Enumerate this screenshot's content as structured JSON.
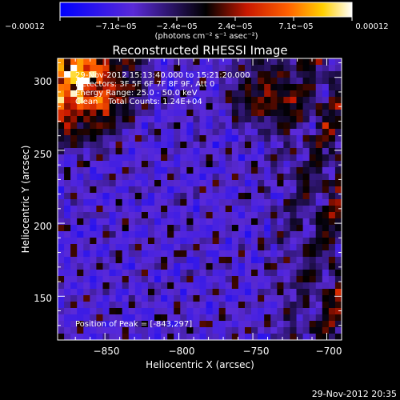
{
  "chart_data": {
    "type": "heatmap",
    "title": "Reconstructed RHESSI Image",
    "xlabel": "Heliocentric X (arcsec)",
    "ylabel": "Heliocentric Y (arcsec)",
    "xlim": [
      -882,
      -690
    ],
    "ylim": [
      120,
      313
    ],
    "x_ticks": [
      -850,
      -800,
      -750,
      -700
    ],
    "x_tick_labels": [
      "−850",
      "−800",
      "−750",
      "−700"
    ],
    "y_ticks": [
      150,
      200,
      250,
      300
    ],
    "y_tick_labels": [
      "150",
      "200",
      "250",
      "300"
    ],
    "colorbar": {
      "min": -0.00012,
      "max": 0.00012,
      "tick_labels": [
        "−0.00012",
        "−7.1e−05",
        "−2.4e−05",
        "2.4e−05",
        "7.1e−05",
        "0.00012"
      ],
      "unit_label": "(photons cm⁻² s⁻¹ asec⁻²)",
      "colors": [
        "#0000ff",
        "#5a2ad8",
        "#000000",
        "#c81800",
        "#ff6000",
        "#ffd000",
        "#ffffff"
      ]
    },
    "annotations": {
      "time_range": "29-Nov-2012 15:13:40.000 to 15:21:20.000",
      "detectors": "Detectors: 3F 5F 6F 7F 8F 9F, Att 0",
      "energy": "Energy Range: 25.0 - 50.0 keV",
      "clean": "Clean    Total Counts: 1.24E+04",
      "peak": "Position of Peak = [-843,297]"
    },
    "peak": {
      "x": -843,
      "y": 297
    },
    "grid": false
  },
  "footer": {
    "timestamp": "29-Nov-2012 20:35"
  }
}
